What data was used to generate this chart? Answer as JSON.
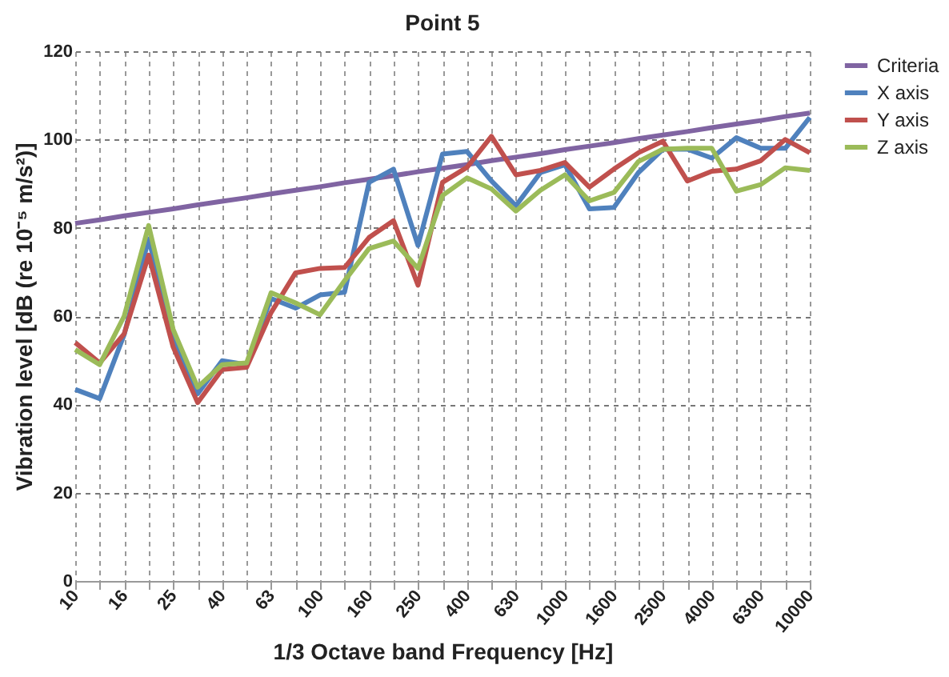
{
  "chart_data": {
    "type": "line",
    "title": "Point 5",
    "xlabel": "1/3 Octave band Frequency [Hz]",
    "ylabel": "Vibration level [dB (re 10⁻⁵ m/s²)]",
    "categories": [
      "10",
      null,
      "16",
      null,
      "25",
      null,
      "40",
      null,
      "63",
      null,
      "100",
      null,
      "160",
      null,
      "250",
      null,
      "400",
      null,
      "630",
      null,
      "1000",
      null,
      "1600",
      null,
      "2500",
      null,
      "4000",
      null,
      "6300",
      null,
      "10000"
    ],
    "series": [
      {
        "name": "Criteria",
        "color": "#8064a2",
        "values": [
          81,
          81.8,
          82.7,
          83.5,
          84.3,
          85.2,
          86,
          86.8,
          87.7,
          88.5,
          89.3,
          90.2,
          91,
          91.8,
          92.7,
          93.5,
          94.3,
          95.2,
          96,
          96.8,
          97.7,
          98.5,
          99.3,
          100.2,
          101,
          101.8,
          102.7,
          103.5,
          104.3,
          105.2,
          106
        ]
      },
      {
        "name": "X  axis",
        "color": "#4f81bd",
        "values": [
          43.4,
          41.3,
          55.8,
          77.5,
          55,
          42.4,
          49.9,
          49,
          64,
          61.8,
          64.8,
          65.4,
          90.3,
          93.3,
          76,
          96.7,
          97.3,
          90.6,
          85,
          92.5,
          94.3,
          84.3,
          84.6,
          92.5,
          97.8,
          97.8,
          95.8,
          100.4,
          98,
          98,
          105
        ]
      },
      {
        "name": "Y  axis",
        "color": "#c0504d",
        "values": [
          54,
          49.4,
          56,
          73.8,
          53,
          40.4,
          47.9,
          48.4,
          60.8,
          69.8,
          70.8,
          71,
          77.8,
          81.6,
          67,
          90.3,
          93.7,
          100.7,
          92,
          93,
          94.8,
          89.2,
          93.3,
          97,
          99.6,
          90.6,
          92.8,
          93.3,
          95.2,
          100,
          97
        ]
      },
      {
        "name": "Z  axis",
        "color": "#9bbb59",
        "values": [
          52.4,
          49,
          60,
          80.5,
          57,
          43.9,
          49,
          49.4,
          65.3,
          63,
          60.3,
          68,
          75.3,
          77,
          70.8,
          87.3,
          91.3,
          88.8,
          83.8,
          88.5,
          92,
          86.1,
          88,
          95,
          97.8,
          98,
          98,
          88.3,
          89.8,
          93.6,
          93
        ]
      }
    ],
    "ylim": [
      0,
      120
    ],
    "yticks": [
      0,
      20,
      40,
      60,
      80,
      100,
      120
    ],
    "grid": true,
    "legend": "right"
  }
}
